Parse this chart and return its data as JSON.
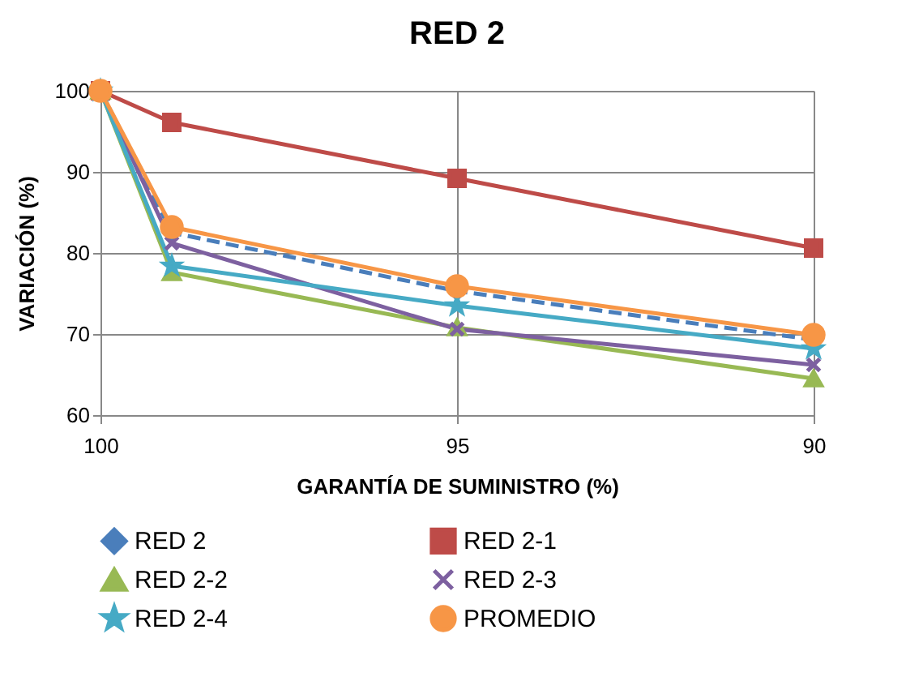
{
  "chart_data": {
    "type": "line",
    "title": "RED 2",
    "xlabel": "GARANTÍA DE SUMINISTRO (%)",
    "ylabel": "VARIACIÓN (%)",
    "x": [
      100,
      99,
      95,
      90
    ],
    "xlim": [
      100,
      90
    ],
    "xticks": [
      100,
      95,
      90
    ],
    "ylim": [
      60,
      100
    ],
    "yticks": [
      60,
      70,
      80,
      90,
      100
    ],
    "grid": true,
    "legend": "bottom",
    "series": [
      {
        "name": "RED 2",
        "color": "#4a7ebb",
        "marker": "diamond",
        "line_style": "dashed",
        "values": [
          100,
          82.5,
          75.3,
          69.3
        ]
      },
      {
        "name": "RED 2-1",
        "color": "#be4b48",
        "marker": "square",
        "line_style": "solid",
        "values": [
          100,
          96.1,
          89.2,
          80.6
        ]
      },
      {
        "name": "RED 2-2",
        "color": "#98b954",
        "marker": "triangle",
        "line_style": "solid",
        "values": [
          100,
          77.6,
          70.8,
          64.5
        ]
      },
      {
        "name": "RED 2-3",
        "color": "#7d60a0",
        "marker": "cross",
        "line_style": "solid",
        "values": [
          100,
          81.2,
          70.6,
          66.2
        ]
      },
      {
        "name": "RED 2-4",
        "color": "#46aac5",
        "marker": "star",
        "line_style": "solid",
        "values": [
          100,
          78.4,
          73.5,
          68.2
        ]
      },
      {
        "name": "PROMEDIO",
        "color": "#f79646",
        "marker": "circle",
        "line_style": "solid",
        "values": [
          100,
          83.2,
          75.9,
          69.9
        ]
      }
    ]
  }
}
